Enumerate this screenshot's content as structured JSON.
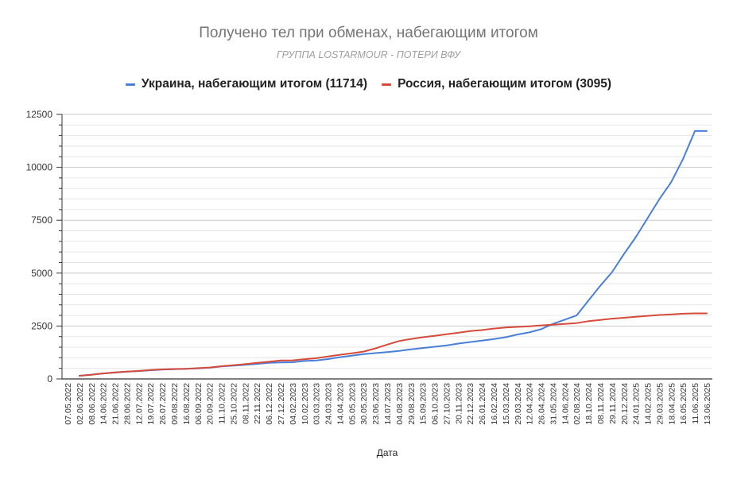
{
  "chart_data": {
    "type": "line",
    "title": "Получено тел при обменах, набегающим итогом",
    "subtitle": "ГРУППА LOSTARMOUR - ПОТЕРИ ВФУ",
    "xlabel": "Дата",
    "ylabel": "",
    "ylim": [
      0,
      12500
    ],
    "yticks": [
      0,
      2500,
      5000,
      7500,
      10000,
      12500
    ],
    "grid": true,
    "legend_position": "top",
    "categories": [
      "07.05.2022",
      "02.06.2022",
      "08.06.2022",
      "14.06.2022",
      "21.06.2022",
      "28.06.2022",
      "12.07.2022",
      "19.07.2022",
      "26.07.2022",
      "09.08.2022",
      "16.08.2022",
      "06.09.2022",
      "20.09.2022",
      "11.10.2022",
      "25.10.2022",
      "08.11.2022",
      "22.11.2022",
      "06.12.2022",
      "27.12.2022",
      "04.02.2023",
      "10.02.2023",
      "03.03.2023",
      "24.03.2023",
      "14.04.2023",
      "05.05.2023",
      "30.05.2023",
      "23.06.2023",
      "14.07.2023",
      "04.08.2023",
      "29.08.2023",
      "15.09.2023",
      "06.10.2023",
      "27.10.2023",
      "20.11.2023",
      "22.12.2023",
      "26.01.2024",
      "16.02.2024",
      "15.03.2024",
      "29.03.2024",
      "12.04.2024",
      "26.04.2024",
      "31.05.2024",
      "14.06.2024",
      "02.08.2024",
      "18.10.2024",
      "08.11.2024",
      "29.11.2024",
      "20.12.2024",
      "24.01.2025",
      "14.02.2025",
      "29.03.2025",
      "18.04.2025",
      "16.05.2025",
      "11.06.2025",
      "13.06.2025"
    ],
    "series": [
      {
        "name": "Украина, набегающим итогом (11714)",
        "color": "#4a7fd8",
        "values": [
          null,
          150,
          200,
          260,
          300,
          340,
          370,
          410,
          440,
          460,
          480,
          500,
          530,
          590,
          630,
          670,
          710,
          760,
          780,
          790,
          850,
          870,
          940,
          1030,
          1100,
          1170,
          1220,
          1270,
          1320,
          1400,
          1460,
          1520,
          1580,
          1670,
          1740,
          1810,
          1880,
          1970,
          2100,
          2200,
          2350,
          2600,
          2800,
          3000,
          3700,
          4400,
          5050,
          5900,
          6700,
          7600,
          8500,
          9300,
          10400,
          11714,
          11714
        ]
      },
      {
        "name": "Россия, набегающим итогом (3095)",
        "color": "#d64a3b",
        "values": [
          null,
          150,
          200,
          260,
          310,
          350,
          380,
          420,
          450,
          470,
          480,
          510,
          540,
          600,
          650,
          700,
          760,
          810,
          870,
          880,
          930,
          980,
          1060,
          1140,
          1210,
          1290,
          1440,
          1620,
          1790,
          1890,
          1970,
          2040,
          2110,
          2180,
          2260,
          2310,
          2380,
          2430,
          2460,
          2490,
          2530,
          2560,
          2600,
          2640,
          2730,
          2790,
          2850,
          2890,
          2940,
          2980,
          3020,
          3050,
          3080,
          3095,
          3095
        ]
      }
    ]
  }
}
